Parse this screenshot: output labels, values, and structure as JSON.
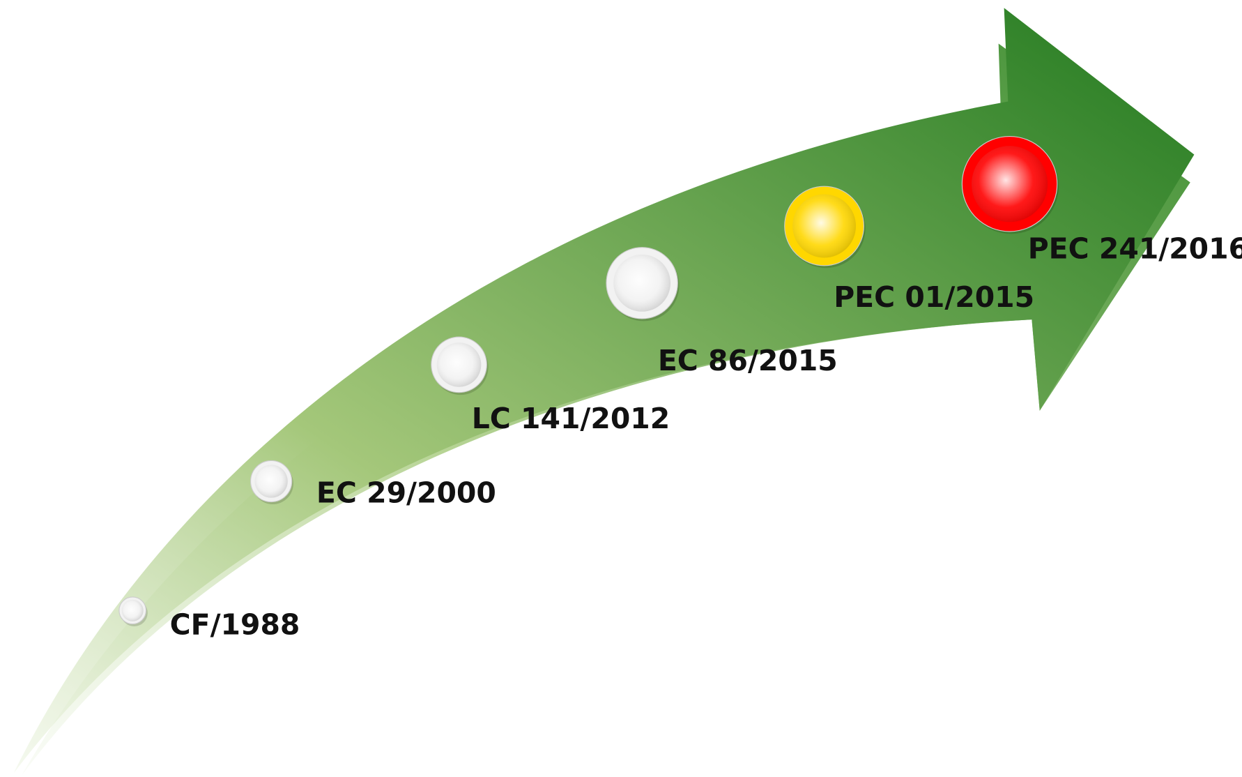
{
  "nodes": [
    {
      "label": "CF/1988",
      "color": "#f2f2f2"
    },
    {
      "label": "EC 29/2000",
      "color": "#f2f2f2"
    },
    {
      "label": "LC 141/2012",
      "color": "#f2f2f2"
    },
    {
      "label": "EC 86/2015",
      "color": "#f2f2f2"
    },
    {
      "label": "PEC 01/2015",
      "color": "#ffd700"
    },
    {
      "label": "PEC 241/2016",
      "color": "#ff0000"
    }
  ]
}
